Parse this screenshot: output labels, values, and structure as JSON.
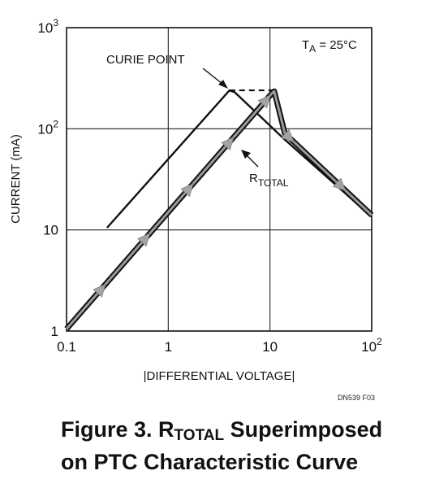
{
  "chart_data": {
    "type": "line",
    "xscale": "log",
    "yscale": "log",
    "xlim": [
      0.1,
      100
    ],
    "ylim": [
      1,
      1000
    ],
    "grid": true,
    "xlabel": "|DIFFERENTIAL VOLTAGE|",
    "ylabel": "CURRENT (mA)",
    "x_ticks": [
      {
        "base": "0.1",
        "exp": ""
      },
      {
        "base": "1",
        "exp": ""
      },
      {
        "base": "10",
        "exp": ""
      },
      {
        "base": "10",
        "exp": "2"
      }
    ],
    "y_ticks": [
      {
        "base": "1",
        "exp": ""
      },
      {
        "base": "10",
        "exp": ""
      },
      {
        "base": "10",
        "exp": "2"
      },
      {
        "base": "10",
        "exp": "3"
      }
    ],
    "condition": {
      "main": "T",
      "sub": "A",
      "rest": " = 25°C"
    },
    "series": [
      {
        "x": [
          0.25,
          4.0,
          4.5,
          14.0,
          100
        ],
        "y": [
          10.5,
          240,
          230,
          78,
          13.5
        ]
      },
      {
        "x": [
          0.1,
          10.5,
          11.0,
          14.0,
          100
        ],
        "y": [
          1.05,
          225,
          235,
          90,
          14.0
        ]
      }
    ],
    "dashed_segment": {
      "x": [
        4.0,
        10.5
      ],
      "y": [
        240,
        240
      ]
    },
    "arrow_marks_x": [
      0.22,
      0.6,
      1.6,
      4.0,
      9.2,
      15.5,
      50
    ],
    "annotations": [
      {
        "text": "CURIE POINT",
        "x": 4.0,
        "y": 240
      },
      {
        "main": "R",
        "sub": "TOTAL",
        "x": 6.0,
        "y": 75
      }
    ],
    "figure_note": "DN539 F03"
  },
  "caption": {
    "pre": "Figure 3. R",
    "sub": "TOTAL",
    "post": " Superimposed",
    "line2": "on PTC Characteristic Curve"
  }
}
